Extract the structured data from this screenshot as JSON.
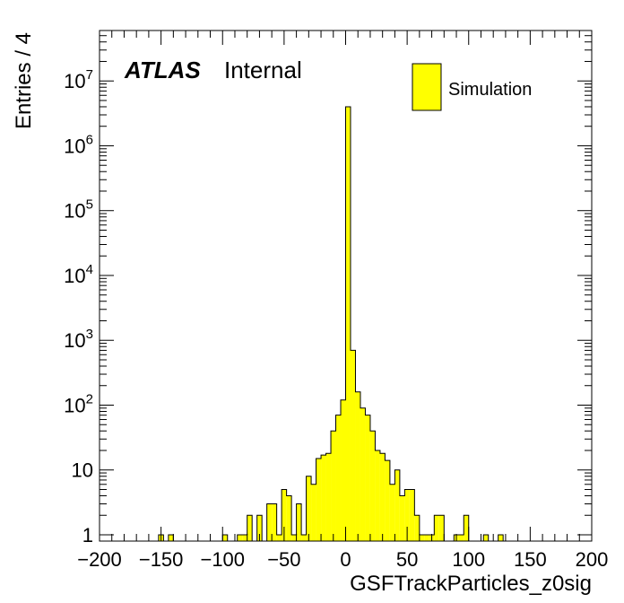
{
  "chart_data": {
    "type": "bar",
    "title": "",
    "xlabel": "GSFTrackParticles_z0sig",
    "ylabel": "Entries / 4",
    "x_range": [
      -200,
      200
    ],
    "y_range": [
      0.8,
      60000000
    ],
    "yscale": "log",
    "bin_width": 4,
    "x_ticks": [
      -200,
      -150,
      -100,
      -50,
      0,
      50,
      100,
      150,
      200
    ],
    "x_tick_labels": [
      "−200",
      "−150",
      "−100",
      "−50",
      "0",
      "50",
      "100",
      "150",
      "200"
    ],
    "y_ticks": [
      1,
      10,
      100,
      1000,
      10000,
      100000,
      1000000,
      10000000
    ],
    "y_tick_labels": [
      {
        "base": "1",
        "exp": ""
      },
      {
        "base": "10",
        "exp": ""
      },
      {
        "base": "10",
        "exp": "2"
      },
      {
        "base": "10",
        "exp": "3"
      },
      {
        "base": "10",
        "exp": "4"
      },
      {
        "base": "10",
        "exp": "5"
      },
      {
        "base": "10",
        "exp": "6"
      },
      {
        "base": "10",
        "exp": "7"
      }
    ],
    "fill_color": "#ffff00",
    "line_color": "#000000",
    "series": [
      {
        "name": "Simulation",
        "bins": [
          {
            "x0": -152,
            "y": 1
          },
          {
            "x0": -144,
            "y": 1
          },
          {
            "x0": -100,
            "y": 1
          },
          {
            "x0": -88,
            "y": 1
          },
          {
            "x0": -84,
            "y": 1
          },
          {
            "x0": -80,
            "y": 2
          },
          {
            "x0": -72,
            "y": 2
          },
          {
            "x0": -64,
            "y": 3
          },
          {
            "x0": -60,
            "y": 3
          },
          {
            "x0": -56,
            "y": 1
          },
          {
            "x0": -52,
            "y": 5
          },
          {
            "x0": -48,
            "y": 4
          },
          {
            "x0": -44,
            "y": 1
          },
          {
            "x0": -40,
            "y": 3
          },
          {
            "x0": -36,
            "y": 1
          },
          {
            "x0": -32,
            "y": 8
          },
          {
            "x0": -28,
            "y": 6
          },
          {
            "x0": -24,
            "y": 15
          },
          {
            "x0": -20,
            "y": 17
          },
          {
            "x0": -16,
            "y": 18
          },
          {
            "x0": -12,
            "y": 40
          },
          {
            "x0": -8,
            "y": 70
          },
          {
            "x0": -4,
            "y": 120
          },
          {
            "x0": 0,
            "y": 4000000
          },
          {
            "x0": 4,
            "y": 700
          },
          {
            "x0": 8,
            "y": 160
          },
          {
            "x0": 12,
            "y": 90
          },
          {
            "x0": 16,
            "y": 70
          },
          {
            "x0": 20,
            "y": 40
          },
          {
            "x0": 24,
            "y": 20
          },
          {
            "x0": 28,
            "y": 18
          },
          {
            "x0": 32,
            "y": 14
          },
          {
            "x0": 36,
            "y": 6
          },
          {
            "x0": 40,
            "y": 10
          },
          {
            "x0": 44,
            "y": 4
          },
          {
            "x0": 48,
            "y": 5
          },
          {
            "x0": 52,
            "y": 5
          },
          {
            "x0": 56,
            "y": 2
          },
          {
            "x0": 60,
            "y": 1
          },
          {
            "x0": 64,
            "y": 1
          },
          {
            "x0": 68,
            "y": 1
          },
          {
            "x0": 72,
            "y": 2
          },
          {
            "x0": 76,
            "y": 2
          },
          {
            "x0": 88,
            "y": 1
          },
          {
            "x0": 92,
            "y": 1
          },
          {
            "x0": 96,
            "y": 2
          },
          {
            "x0": 112,
            "y": 1
          },
          {
            "x0": 124,
            "y": 1
          }
        ]
      }
    ],
    "legend": {
      "label": "Simulation",
      "placement": "top-right"
    },
    "annotation": {
      "bold": "ATLAS",
      "normal": "Internal"
    }
  }
}
